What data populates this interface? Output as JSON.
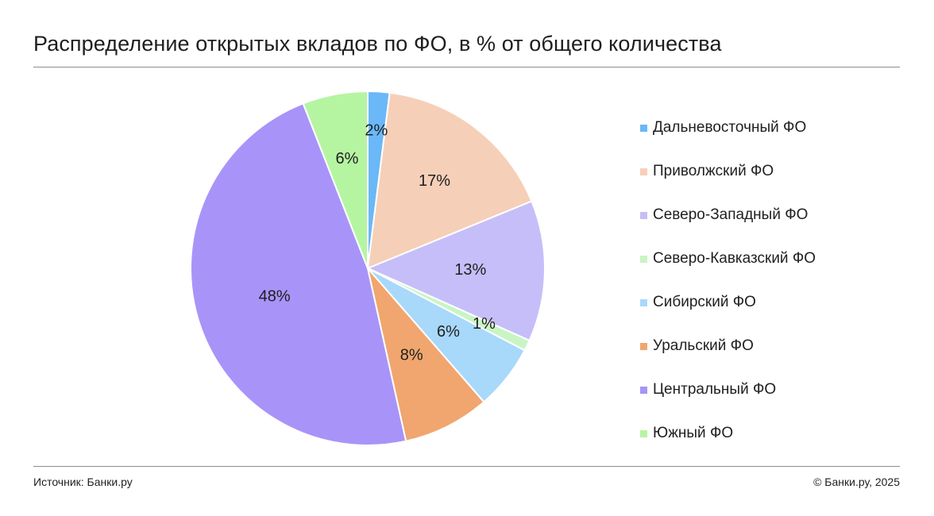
{
  "chart_data": {
    "type": "pie",
    "title": "Распределение открытых вкладов по ФО, в % от общего количества",
    "legend_position": "right",
    "slices": [
      {
        "name": "Дальневосточный ФО",
        "value": 2,
        "label": "2%",
        "color": "#6ab8f7"
      },
      {
        "name": "Приволжский ФО",
        "value": 17,
        "label": "17%",
        "color": "#f6cfb8"
      },
      {
        "name": "Северо-Западный ФО",
        "value": 13,
        "label": "13%",
        "color": "#c6bef8"
      },
      {
        "name": "Северо-Кавказский ФО",
        "value": 1,
        "label": "1%",
        "color": "#c9f5c4"
      },
      {
        "name": "Сибирский ФО",
        "value": 6,
        "label": "6%",
        "color": "#a8d8fa"
      },
      {
        "name": "Уральский ФО",
        "value": 8,
        "label": "8%",
        "color": "#f0a66e"
      },
      {
        "name": "Центральный ФО",
        "value": 48,
        "label": "48%",
        "color": "#a894f8"
      },
      {
        "name": "Южный ФО",
        "value": 6,
        "label": "6%",
        "color": "#b5f5a2"
      }
    ]
  },
  "footer": {
    "source": "Источник: Банки.ру",
    "copyright": "© Банки.ру, 2025"
  }
}
